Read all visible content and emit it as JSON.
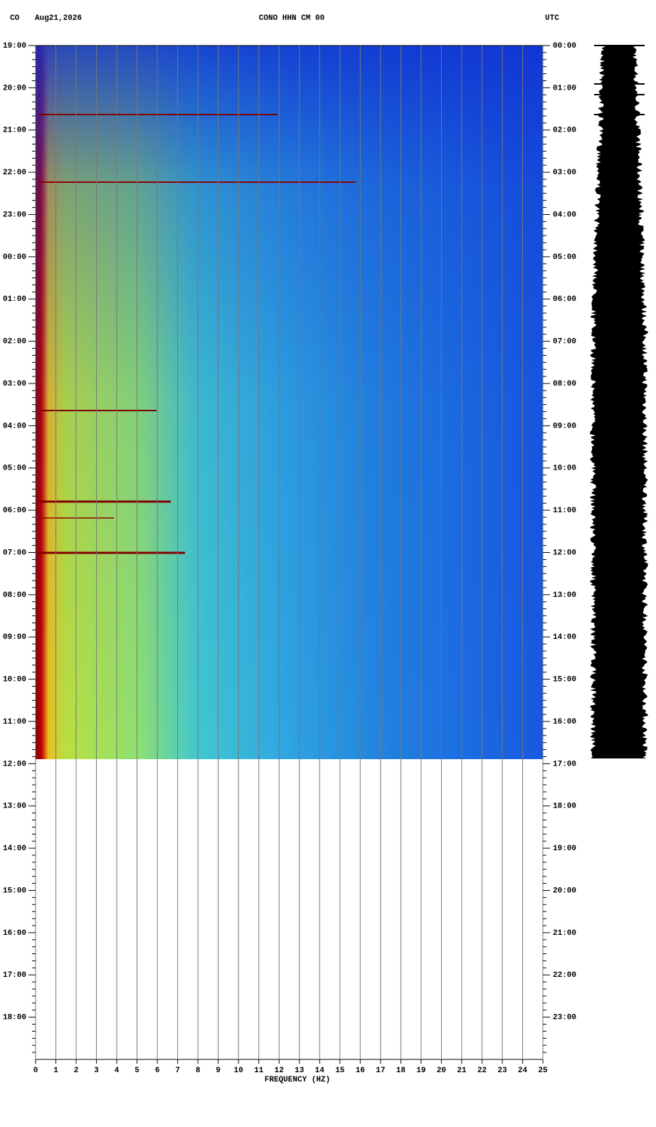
{
  "chart_data": {
    "type": "spectrogram",
    "network": "CO",
    "date": "Aug21,2026",
    "title": "CONO HHN CM 00",
    "timezone": "UTC",
    "xlabel": "FREQUENCY (HZ)",
    "xlim": [
      0,
      25
    ],
    "xticks": [
      0,
      1,
      2,
      3,
      4,
      5,
      6,
      7,
      8,
      9,
      10,
      11,
      12,
      13,
      14,
      15,
      16,
      17,
      18,
      19,
      20,
      21,
      22,
      23,
      24,
      25
    ],
    "left_time_labels": [
      "19:00",
      "20:00",
      "21:00",
      "22:00",
      "23:00",
      "00:00",
      "01:00",
      "02:00",
      "03:00",
      "04:00",
      "05:00",
      "06:00",
      "07:00",
      "08:00",
      "09:00",
      "10:00",
      "11:00",
      "12:00",
      "13:00",
      "14:00",
      "15:00",
      "16:00",
      "17:00",
      "18:00"
    ],
    "right_time_labels": [
      "00:00",
      "01:00",
      "02:00",
      "03:00",
      "04:00",
      "05:00",
      "06:00",
      "07:00",
      "08:00",
      "09:00",
      "10:00",
      "11:00",
      "12:00",
      "13:00",
      "14:00",
      "15:00",
      "16:00",
      "17:00",
      "18:00",
      "19:00",
      "20:00",
      "21:00",
      "22:00",
      "23:00"
    ],
    "grid": true
  }
}
